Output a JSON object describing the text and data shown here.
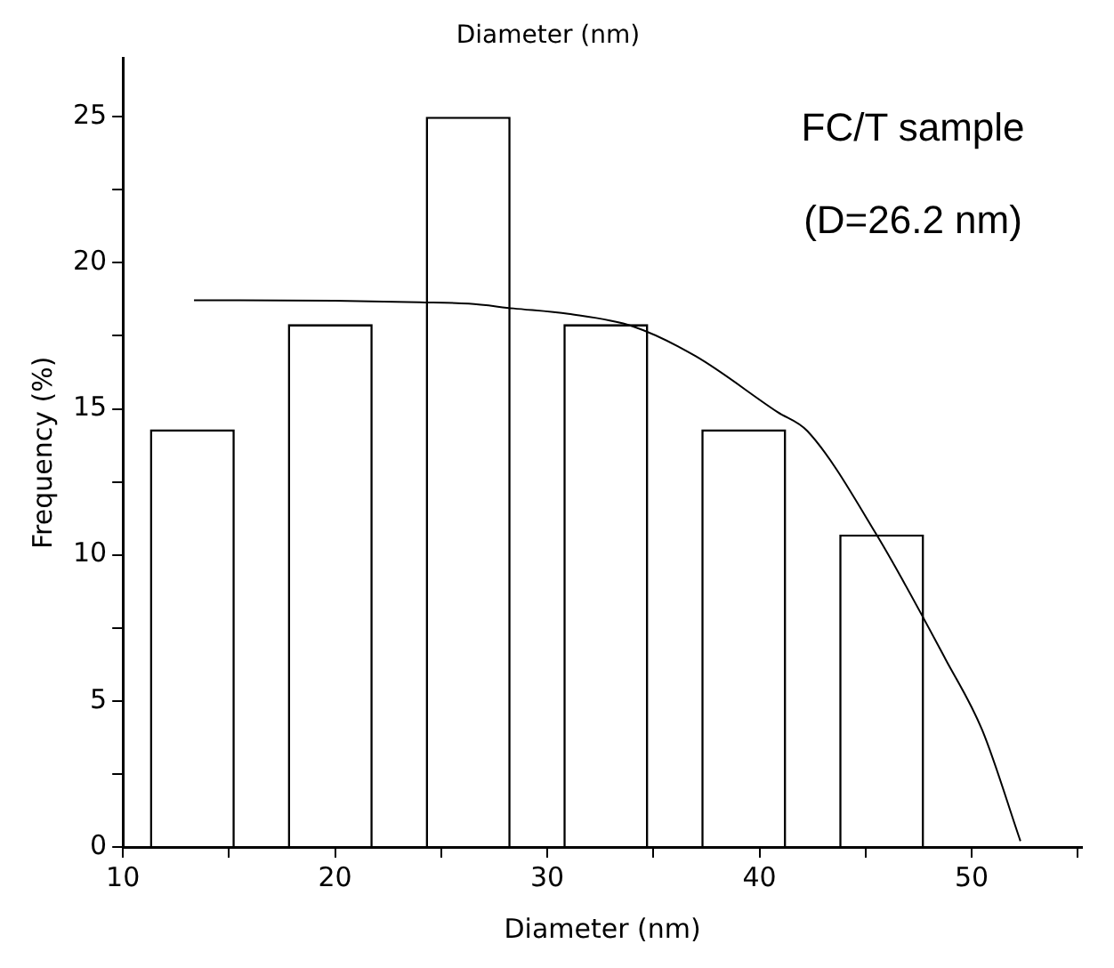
{
  "chart_data": {
    "type": "bar",
    "title": "Diameter (nm)",
    "xlabel": "Diameter (nm)",
    "ylabel": "Frequency (%)",
    "series": [
      {
        "color": "#ffffff",
        "x": [
          13.27,
          19.77,
          26.27,
          32.76,
          39.26,
          45.76
        ],
        "values": [
          14.3,
          17.9,
          25,
          17.9,
          14.3,
          10.7
        ]
      },
      {
        "type": "line",
        "color": "#000000",
        "x": [
          13.35,
          20,
          24,
          26.3,
          28.4,
          31,
          34.05,
          37,
          40.85,
          42.26,
          45.52,
          48.77,
          50.5,
          52.3
        ],
        "values": [
          18.72,
          18.7,
          18.65,
          18.6,
          18.44,
          18.25,
          17.82,
          16.8,
          14.89,
          14.24,
          10.69,
          6.43,
          4,
          0.2
        ]
      }
    ],
    "xlim": [
      10,
      55.2
    ],
    "xticks": [
      10,
      {
        "value": 15,
        "label": null
      },
      20,
      {
        "value": 25,
        "label": null
      },
      30,
      {
        "value": 35,
        "label": null
      },
      40,
      {
        "value": 45,
        "label": null
      },
      50,
      {
        "value": 55,
        "label": null
      }
    ],
    "ylim": [
      0,
      27
    ],
    "yticks": [
      0,
      {
        "value": 2.5,
        "label": null
      },
      5,
      {
        "value": 7.5,
        "label": null
      },
      10,
      {
        "value": 12.5,
        "label": null
      },
      15,
      {
        "value": 17.5,
        "label": null
      },
      20,
      {
        "value": 22.5,
        "label": null
      },
      25
    ],
    "marker": "none",
    "line_style": "solid",
    "grid": false,
    "legend": false,
    "annotations": [
      "FC/T sample",
      "(D=26.2 nm)"
    ]
  }
}
